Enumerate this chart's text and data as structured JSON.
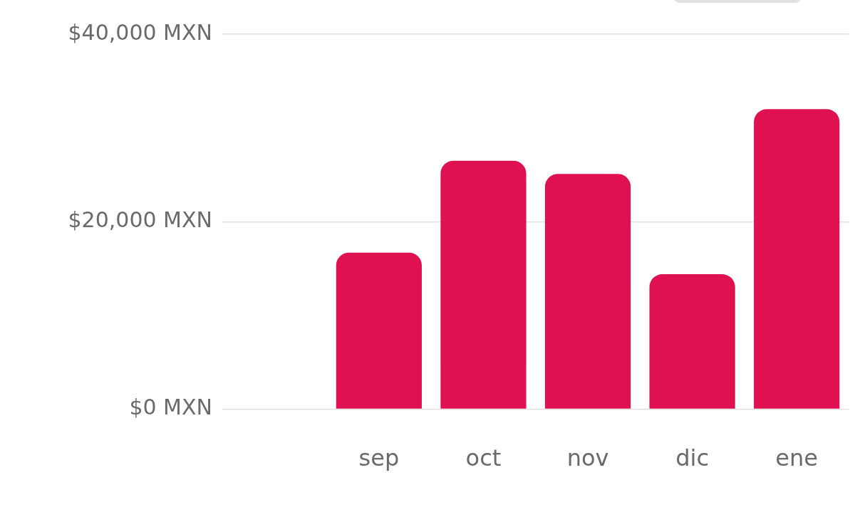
{
  "chart_data": {
    "type": "bar",
    "categories": [
      null,
      "sep",
      "oct",
      "nov",
      "dic",
      "ene"
    ],
    "values": [
      null,
      16700,
      26500,
      25100,
      14400,
      32000
    ],
    "color": "#e01150",
    "ylim": [
      0,
      40000
    ],
    "yticks": [
      {
        "value": 0,
        "label": "$0 MXN"
      },
      {
        "value": 20000,
        "label": "$20,000 MXN"
      },
      {
        "value": 40000,
        "label": "$40,000 MXN"
      }
    ],
    "grid": "y",
    "legend": false
  }
}
